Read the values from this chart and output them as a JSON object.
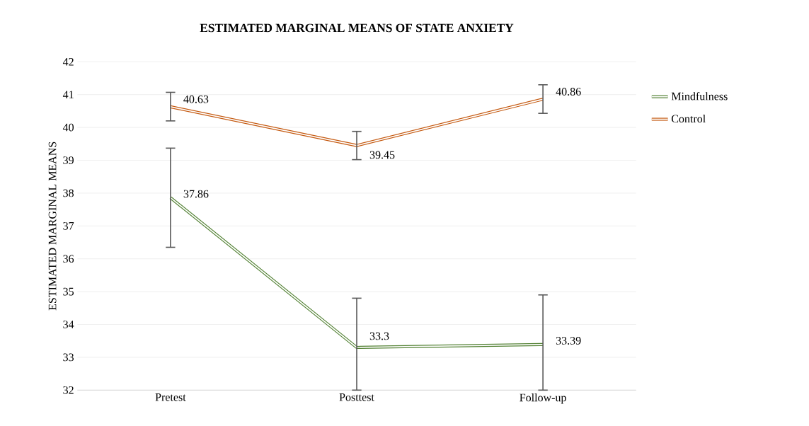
{
  "chart_data": {
    "type": "line",
    "title": "ESTIMATED MARGINAL MEANS OF STATE ANXIETY",
    "ylabel": "ESTIMATED MARGINAL MEANS",
    "categories": [
      "Pretest",
      "Posttest",
      "Follow-up"
    ],
    "series": [
      {
        "name": "Mindfulness",
        "color": "#548235",
        "values": [
          37.86,
          33.3,
          33.39
        ],
        "errors": [
          [
            36.35,
            39.37
          ],
          [
            32,
            34.8
          ],
          [
            32,
            34.9
          ]
        ]
      },
      {
        "name": "Control",
        "color": "#c55a11",
        "values": [
          40.63,
          39.45,
          40.86
        ],
        "errors": [
          [
            40.2,
            41.07
          ],
          [
            39.02,
            39.88
          ],
          [
            40.43,
            41.3
          ]
        ]
      }
    ],
    "ylim": [
      32,
      42
    ],
    "yticks": [
      32,
      33,
      34,
      35,
      36,
      37,
      38,
      39,
      40,
      41,
      42
    ],
    "grid": "y",
    "legend": "right",
    "marker": "none",
    "line_style": "solid",
    "data_labels": true
  }
}
